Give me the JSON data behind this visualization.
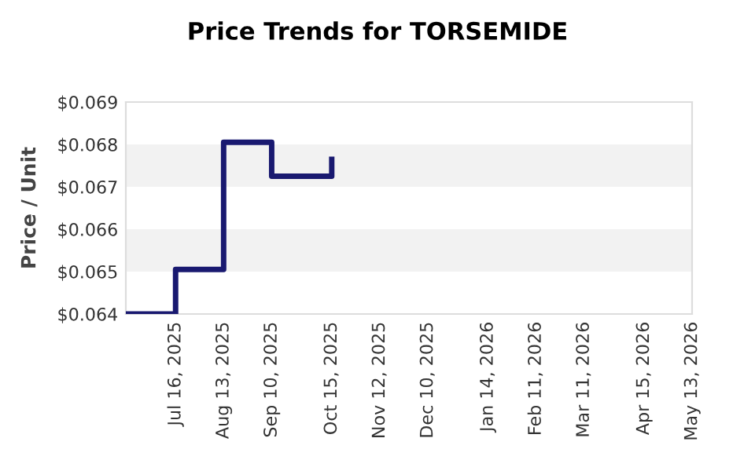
{
  "chart_data": {
    "type": "step",
    "title": "Price Trends for TORSEMIDE",
    "ylabel": "Price / Unit",
    "x": [
      "2025-06-17",
      "2025-07-16",
      "2025-08-13",
      "2025-09-10",
      "2025-10-15"
    ],
    "series": [
      {
        "color": "#191970",
        "values": [
          0.064,
          0.06505,
          0.06805,
          0.06725,
          0.06765
        ]
      }
    ],
    "xlim": [
      "2025-06-17",
      "2026-05-13"
    ],
    "xticks": [
      {
        "value": "2025-07-16",
        "label": "Jul 16, 2025"
      },
      {
        "value": "2025-08-13",
        "label": "Aug 13, 2025"
      },
      {
        "value": "2025-09-10",
        "label": "Sep 10, 2025"
      },
      {
        "value": "2025-10-15",
        "label": "Oct 15, 2025"
      },
      {
        "value": "2025-11-12",
        "label": "Nov 12, 2025"
      },
      {
        "value": "2025-12-10",
        "label": "Dec 10, 2025"
      },
      {
        "value": "2026-01-14",
        "label": "Jan 14, 2026"
      },
      {
        "value": "2026-02-11",
        "label": "Feb 11, 2026"
      },
      {
        "value": "2026-03-11",
        "label": "Mar 11, 2026"
      },
      {
        "value": "2026-04-15",
        "label": "Apr 15, 2026"
      },
      {
        "value": "2026-05-13",
        "label": "May 13, 2026"
      }
    ],
    "ylim": [
      0.064,
      0.069
    ],
    "yticks": [
      {
        "value": 0.064,
        "label": "$0.064"
      },
      {
        "value": 0.065,
        "label": "$0.065"
      },
      {
        "value": 0.066,
        "label": "$0.066"
      },
      {
        "value": 0.067,
        "label": "$0.067"
      },
      {
        "value": 0.068,
        "label": "$0.068"
      },
      {
        "value": 0.069,
        "label": "$0.069"
      }
    ],
    "bands": [
      {
        "axis": "y",
        "from": 0.065,
        "to": 0.066,
        "color": "#f2f2f2"
      },
      {
        "axis": "y",
        "from": 0.067,
        "to": 0.068,
        "color": "#f2f2f2"
      }
    ],
    "grid": false
  }
}
